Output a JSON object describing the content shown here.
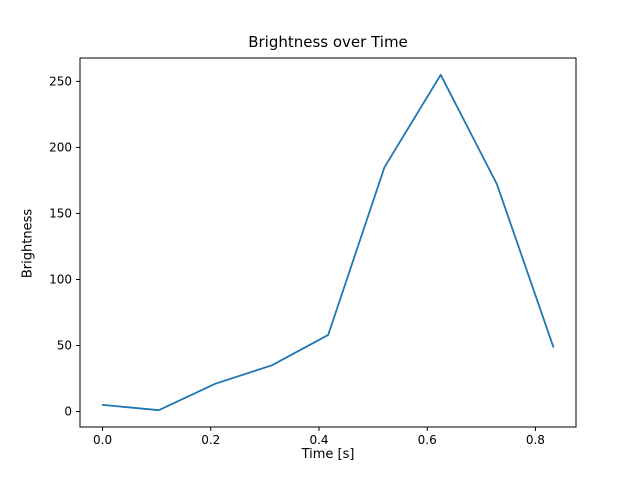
{
  "figure": {
    "background": "#ffffff"
  },
  "chart_data": {
    "type": "line",
    "title": "Brightness over Time",
    "xlabel": "Time [s]",
    "ylabel": "Brightness",
    "x": [
      0.0,
      0.104,
      0.208,
      0.313,
      0.417,
      0.521,
      0.625,
      0.729,
      0.833
    ],
    "y": [
      5,
      1,
      21,
      35,
      58,
      185,
      255,
      172,
      49
    ],
    "xticks": [
      0.0,
      0.2,
      0.4,
      0.6,
      0.8
    ],
    "xtick_labels": [
      "0.0",
      "0.2",
      "0.4",
      "0.6",
      "0.8"
    ],
    "yticks": [
      0,
      50,
      100,
      150,
      200,
      250
    ],
    "ytick_labels": [
      "0",
      "50",
      "100",
      "150",
      "200",
      "250"
    ],
    "xlim": [
      -0.0417,
      0.875
    ],
    "ylim": [
      -11.7,
      267.7
    ],
    "line_color": "#1f77b4",
    "axis_color": "#000000",
    "grid": false,
    "legend_visible": false
  }
}
